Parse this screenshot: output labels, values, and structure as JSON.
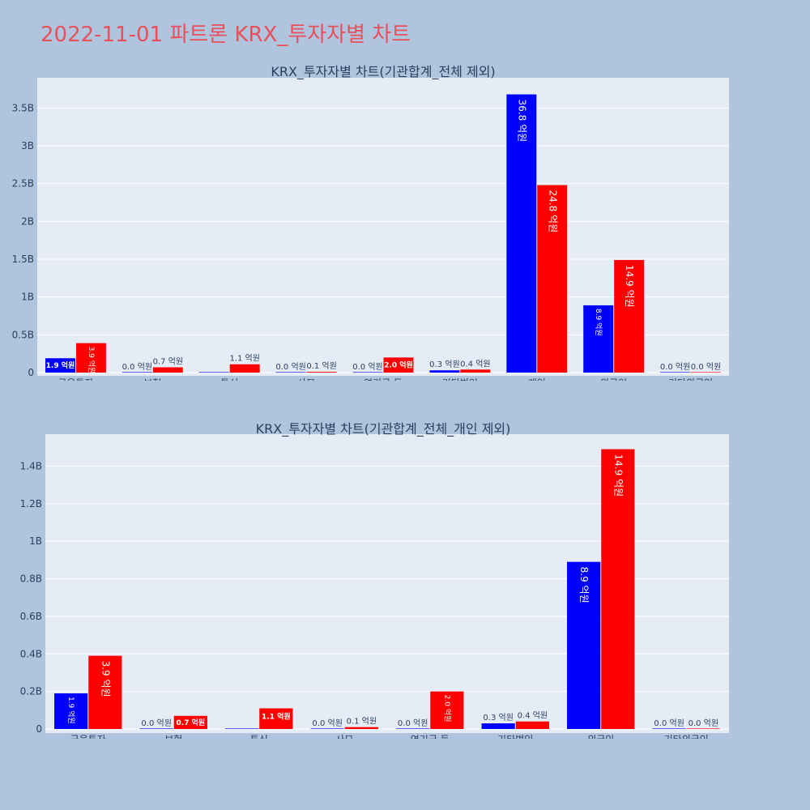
{
  "page_title": "2022-11-01 파트론 KRX_투자자별 차트",
  "colors": {
    "background": "#b0c4de",
    "plot_bg": "#e5ecf6",
    "title": "#e8505b",
    "buy": "#0000ff",
    "sell": "#ff0000"
  },
  "chart_data": [
    {
      "type": "bar",
      "title": "KRX_투자자별 차트(기관합계_전체 제외)",
      "categories": [
        "금융투자",
        "보험",
        "투신",
        "사모",
        "연기금 등",
        "기타법인",
        "개인",
        "외국인",
        "기타외국인"
      ],
      "series": [
        {
          "color": "#0000ff",
          "values": [
            190000000,
            0,
            0,
            0,
            0,
            30000000,
            3680000000,
            890000000,
            0
          ],
          "labels": [
            "1.9 억원",
            "0.0 억원",
            "",
            "0.0 억원",
            "0.0 억원",
            "0.3 억원",
            "36.8 억원",
            "8.9 억원",
            "0.0 억원"
          ]
        },
        {
          "color": "#ff0000",
          "values": [
            390000000,
            70000000,
            110000000,
            10000000,
            200000000,
            40000000,
            2480000000,
            1490000000,
            0
          ],
          "labels": [
            "3.9 억원",
            "0.7 억원",
            "1.1 억원",
            "0.1 억원",
            "2.0 억원",
            "0.4 억원",
            "24.8 억원",
            "14.9 억원",
            "0.0 억원"
          ]
        }
      ],
      "ylim": [
        0,
        3900000000
      ],
      "yticks": [
        0,
        500000000,
        1000000000,
        1500000000,
        2000000000,
        2500000000,
        3000000000,
        3500000000
      ],
      "ytick_labels": [
        "0",
        "0.5B",
        "1B",
        "1.5B",
        "2B",
        "2.5B",
        "3B",
        "3.5B"
      ],
      "grid": true
    },
    {
      "type": "bar",
      "title": "KRX_투자자별 차트(기관합계_전체_개인 제외)",
      "categories": [
        "금융투자",
        "보험",
        "투신",
        "사모",
        "연기금 등",
        "기타법인",
        "외국인",
        "기타외국인"
      ],
      "series": [
        {
          "color": "#0000ff",
          "values": [
            190000000,
            0,
            0,
            0,
            0,
            30000000,
            890000000,
            0
          ],
          "labels": [
            "1.9 억원",
            "0.0 억원",
            "",
            "0.0 억원",
            "0.0 억원",
            "0.3 억원",
            "8.9 억원",
            "0.0 억원"
          ]
        },
        {
          "color": "#ff0000",
          "values": [
            390000000,
            70000000,
            110000000,
            10000000,
            200000000,
            40000000,
            1490000000,
            0
          ],
          "labels": [
            "3.9 억원",
            "0.7 억원",
            "1.1 억원",
            "0.1 억원",
            "2.0 억원",
            "0.4 억원",
            "14.9 억원",
            "0.0 억원"
          ]
        }
      ],
      "ylim": [
        0,
        1570000000
      ],
      "yticks": [
        0,
        200000000,
        400000000,
        600000000,
        800000000,
        1000000000,
        1200000000,
        1400000000
      ],
      "ytick_labels": [
        "0",
        "0.2B",
        "0.4B",
        "0.6B",
        "0.8B",
        "1B",
        "1.2B",
        "1.4B"
      ],
      "grid": true
    }
  ]
}
